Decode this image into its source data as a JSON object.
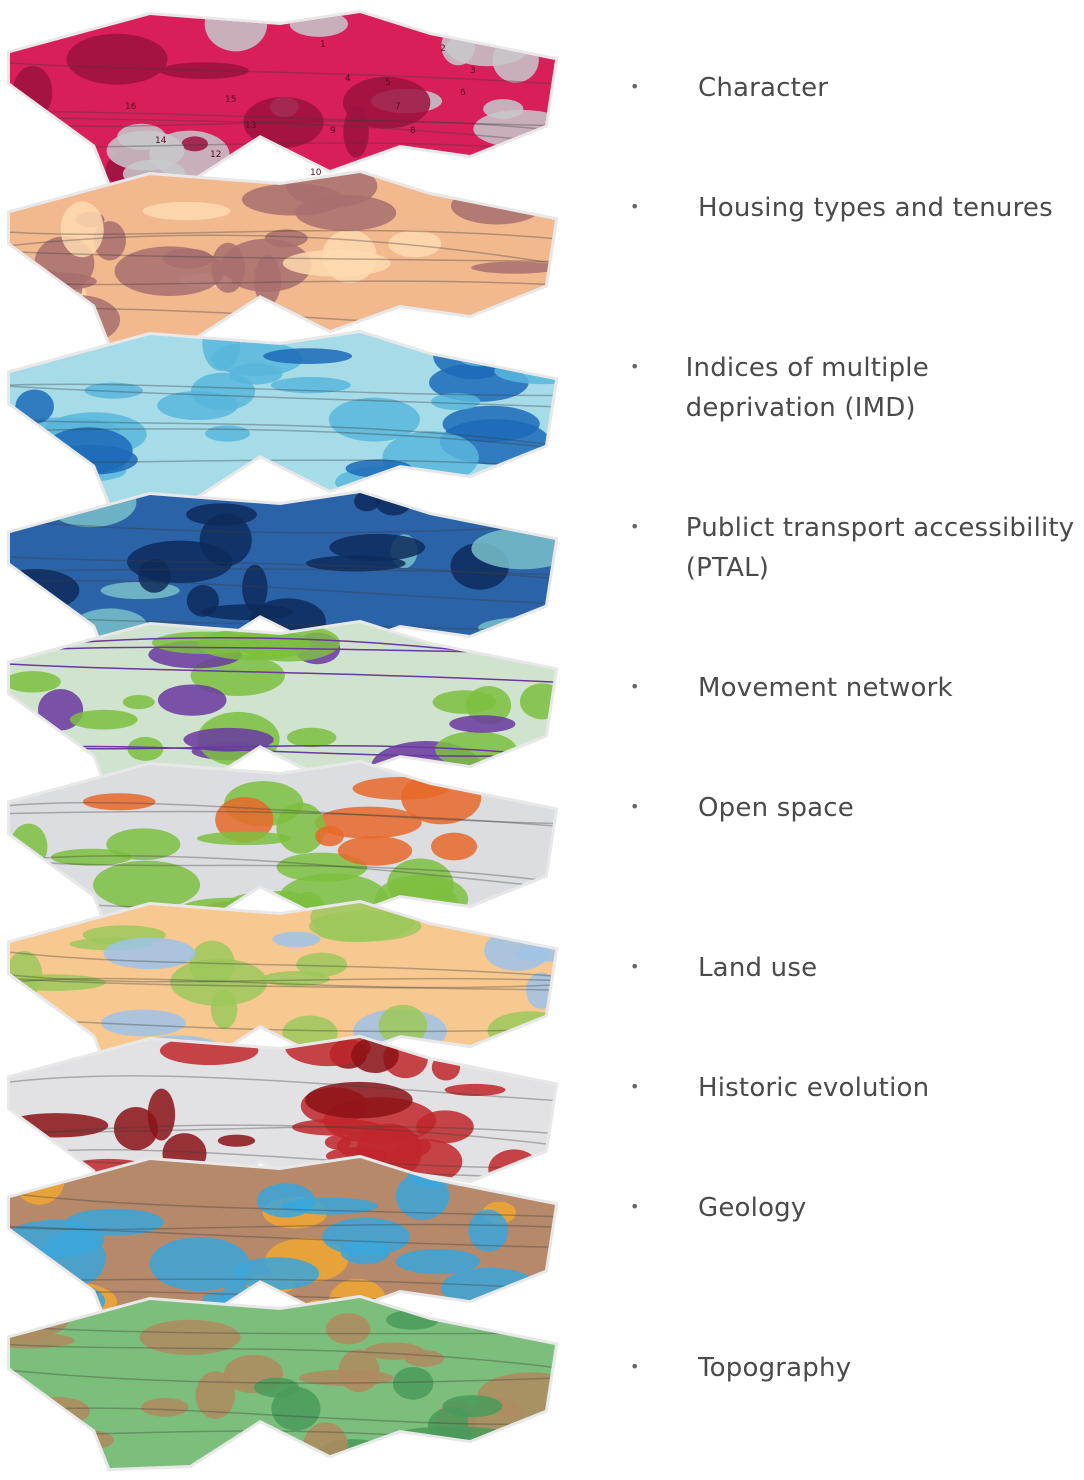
{
  "bullet_glyph": "•",
  "layers": [
    {
      "label": "Character",
      "base": "#d81f5a",
      "accent": "#c7c9cc",
      "detail": "#9c1240",
      "numbers": [
        "1",
        "2",
        "3",
        "4",
        "5",
        "6",
        "7",
        "8",
        "9",
        "10",
        "11",
        "12",
        "13",
        "14",
        "15",
        "16"
      ]
    },
    {
      "label": "Housing types and tenures",
      "base": "#f2b88e",
      "accent": "#a86e6e",
      "detail": "#ffd9b0"
    },
    {
      "label": "Indices of multiple deprivation (IMD)",
      "base": "#a6dbe8",
      "accent": "#58b6dc",
      "detail": "#1c6bb8"
    },
    {
      "label": "Publict transport accessibility (PTAL)",
      "base": "#2b63a8",
      "accent": "#0e2a5c",
      "detail": "#79c0c9"
    },
    {
      "label": "Movement network",
      "base": "#cfe3cf",
      "accent": "#7cc040",
      "detail": "#6a38a0"
    },
    {
      "label": "Open space",
      "base": "#dcdde0",
      "accent": "#7cc040",
      "detail": "#e8682a"
    },
    {
      "label": "Land use",
      "base": "#f8c891",
      "accent": "#9cc85a",
      "detail": "#9ec3e8"
    },
    {
      "label": "Historic evolution",
      "base": "#e2e2e5",
      "accent": "#c0262a",
      "detail": "#8b1216"
    },
    {
      "label": "Geology",
      "base": "#b5896a",
      "accent": "#3aa6dc",
      "detail": "#f0a830"
    },
    {
      "label": "Topography",
      "base": "#7cbf7c",
      "accent": "#b08a60",
      "detail": "#4a9a5a"
    }
  ]
}
